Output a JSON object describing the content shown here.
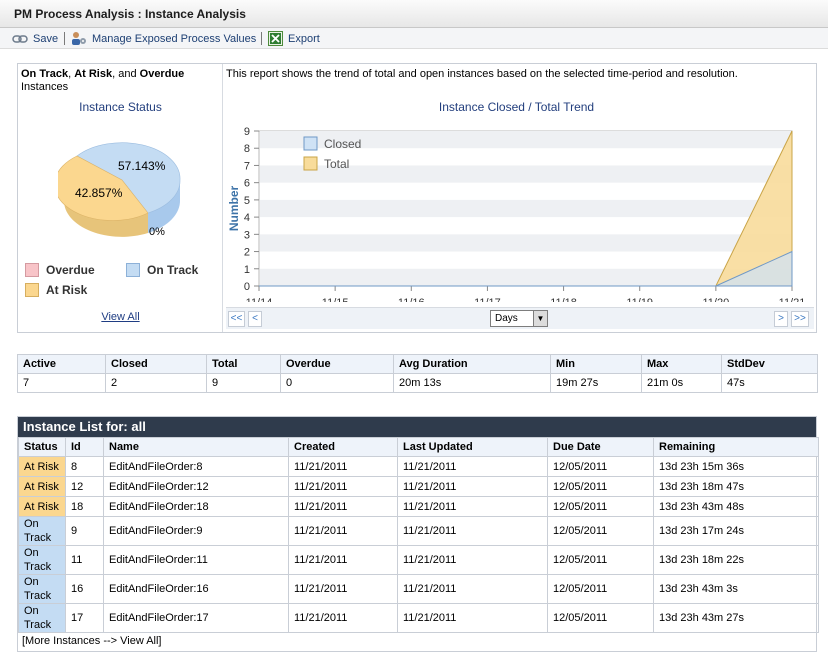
{
  "title": "PM Process Analysis : Instance Analysis",
  "toolbar": {
    "save": "Save",
    "manage": "Manage Exposed Process Values",
    "export": "Export"
  },
  "left": {
    "heading_bold_1": "On Track",
    "heading_sep_1": ", ",
    "heading_bold_2": "At Risk",
    "heading_sep_2": ", and ",
    "heading_bold_3": "Overdue",
    "heading_rest": "Instances",
    "pie_title": "Instance Status",
    "pie_labels": {
      "on_track": "57.143%",
      "at_risk": "42.857%",
      "overdue": "0%"
    },
    "legend": {
      "overdue": "Overdue",
      "on_track": "On Track",
      "at_risk": "At Risk"
    },
    "view_all": "View All"
  },
  "right": {
    "description": "This report shows the trend of total and open instances based on the selected time-period and resolution.",
    "resolution": "Days",
    "nav": {
      "first": "<<",
      "prev": "<",
      "next": ">",
      "last": ">>"
    }
  },
  "colors": {
    "on_track": "#c4dcf3",
    "at_risk": "#fbd78f",
    "overdue": "#f8c4c8",
    "closed_fill": "#cfe2f5",
    "total_fill": "#f8dc9b",
    "axis_label": "#3d73a8",
    "title_blue": "#223e7d"
  },
  "chart_data": [
    {
      "type": "pie",
      "title": "Instance Status",
      "labels": [
        "On Track",
        "At Risk",
        "Overdue"
      ],
      "values": [
        57.143,
        42.857,
        0
      ],
      "legend": "bottom"
    },
    {
      "type": "area",
      "title": "Instance Closed / Total Trend",
      "ylabel": "Number",
      "xlabel": "",
      "x": [
        "11/14",
        "11/15",
        "11/16",
        "11/17",
        "11/18",
        "11/19",
        "11/20",
        "11/21"
      ],
      "series": [
        {
          "name": "Closed",
          "values": [
            0,
            0,
            0,
            0,
            0,
            0,
            0,
            2
          ]
        },
        {
          "name": "Total",
          "values": [
            0,
            0,
            0,
            0,
            0,
            0,
            0,
            9
          ]
        }
      ],
      "ylim": [
        0,
        9
      ],
      "yticks": [
        "0",
        "1",
        "2",
        "3",
        "4",
        "5",
        "6",
        "7",
        "8",
        "9"
      ],
      "legend": "top-left",
      "grid": true
    }
  ],
  "stats": {
    "headers": [
      "Active",
      "Closed",
      "Total",
      "Overdue",
      "Avg Duration",
      "Min",
      "Max",
      "StdDev"
    ],
    "values": [
      "7",
      "2",
      "9",
      "0",
      "20m 13s",
      "19m 27s",
      "21m 0s",
      "47s"
    ]
  },
  "list": {
    "title": "Instance List for: all",
    "headers": [
      "Status",
      "Id",
      "Name",
      "Created",
      "Last Updated",
      "Due Date",
      "Remaining"
    ],
    "rows": [
      {
        "status": "At Risk",
        "id": "8",
        "name": "EditAndFileOrder:8",
        "created": "11/21/2011",
        "updated": "11/21/2011",
        "due": "12/05/2011",
        "remaining": "13d 23h 15m 36s"
      },
      {
        "status": "At Risk",
        "id": "12",
        "name": "EditAndFileOrder:12",
        "created": "11/21/2011",
        "updated": "11/21/2011",
        "due": "12/05/2011",
        "remaining": "13d 23h 18m 47s"
      },
      {
        "status": "At Risk",
        "id": "18",
        "name": "EditAndFileOrder:18",
        "created": "11/21/2011",
        "updated": "11/21/2011",
        "due": "12/05/2011",
        "remaining": "13d 23h 43m 48s"
      },
      {
        "status": "On Track",
        "id": "9",
        "name": "EditAndFileOrder:9",
        "created": "11/21/2011",
        "updated": "11/21/2011",
        "due": "12/05/2011",
        "remaining": "13d 23h 17m 24s"
      },
      {
        "status": "On Track",
        "id": "11",
        "name": "EditAndFileOrder:11",
        "created": "11/21/2011",
        "updated": "11/21/2011",
        "due": "12/05/2011",
        "remaining": "13d 23h 18m 22s"
      },
      {
        "status": "On Track",
        "id": "16",
        "name": "EditAndFileOrder:16",
        "created": "11/21/2011",
        "updated": "11/21/2011",
        "due": "12/05/2011",
        "remaining": "13d 23h 43m 3s"
      },
      {
        "status": "On Track",
        "id": "17",
        "name": "EditAndFileOrder:17",
        "created": "11/21/2011",
        "updated": "11/21/2011",
        "due": "12/05/2011",
        "remaining": "13d 23h 43m 27s"
      }
    ],
    "more": "[More Instances --> View All]"
  }
}
